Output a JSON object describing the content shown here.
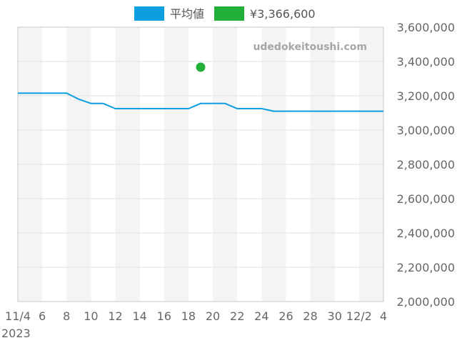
{
  "chart_data": {
    "type": "line",
    "watermark": "udedokeitoushi.com",
    "x_axis": {
      "min": "2023-11-04",
      "max": "2023-12-04",
      "tick_labels": [
        "11/4",
        "6",
        "8",
        "10",
        "12",
        "14",
        "16",
        "18",
        "20",
        "22",
        "24",
        "26",
        "28",
        "30",
        "12/2",
        "4"
      ],
      "tick_dates": [
        "2023-11-04",
        "2023-11-06",
        "2023-11-08",
        "2023-11-10",
        "2023-11-12",
        "2023-11-14",
        "2023-11-16",
        "2023-11-18",
        "2023-11-20",
        "2023-11-22",
        "2023-11-24",
        "2023-11-26",
        "2023-11-28",
        "2023-11-30",
        "2023-12-02",
        "2023-12-04"
      ],
      "year_label": "2023",
      "alternating_bands": true
    },
    "y_axis": {
      "position": "right",
      "min": 2000000,
      "max": 3600000,
      "ticks": [
        2000000,
        2200000,
        2400000,
        2600000,
        2800000,
        3000000,
        3200000,
        3400000,
        3600000
      ],
      "tick_labels": [
        "2,000,000",
        "2,200,000",
        "2,400,000",
        "2,600,000",
        "2,800,000",
        "3,000,000",
        "3,200,000",
        "3,400,000",
        "3,600,000"
      ],
      "grid": true
    },
    "legend": {
      "placement": "top-center"
    },
    "series": [
      {
        "name": "平均値",
        "kind": "line",
        "color": "#0b9ee1",
        "points": [
          {
            "x": "2023-11-04",
            "y": 3215000
          },
          {
            "x": "2023-11-05",
            "y": 3215000
          },
          {
            "x": "2023-11-06",
            "y": 3215000
          },
          {
            "x": "2023-11-07",
            "y": 3215000
          },
          {
            "x": "2023-11-08",
            "y": 3215000
          },
          {
            "x": "2023-11-09",
            "y": 3180000
          },
          {
            "x": "2023-11-10",
            "y": 3155000
          },
          {
            "x": "2023-11-11",
            "y": 3155000
          },
          {
            "x": "2023-11-12",
            "y": 3125000
          },
          {
            "x": "2023-11-13",
            "y": 3125000
          },
          {
            "x": "2023-11-14",
            "y": 3125000
          },
          {
            "x": "2023-11-15",
            "y": 3125000
          },
          {
            "x": "2023-11-16",
            "y": 3125000
          },
          {
            "x": "2023-11-17",
            "y": 3125000
          },
          {
            "x": "2023-11-18",
            "y": 3125000
          },
          {
            "x": "2023-11-19",
            "y": 3155000
          },
          {
            "x": "2023-11-20",
            "y": 3155000
          },
          {
            "x": "2023-11-21",
            "y": 3155000
          },
          {
            "x": "2023-11-22",
            "y": 3125000
          },
          {
            "x": "2023-11-23",
            "y": 3125000
          },
          {
            "x": "2023-11-24",
            "y": 3125000
          },
          {
            "x": "2023-11-25",
            "y": 3110000
          },
          {
            "x": "2023-11-26",
            "y": 3110000
          },
          {
            "x": "2023-11-27",
            "y": 3110000
          },
          {
            "x": "2023-11-28",
            "y": 3110000
          },
          {
            "x": "2023-11-29",
            "y": 3110000
          },
          {
            "x": "2023-11-30",
            "y": 3110000
          },
          {
            "x": "2023-12-01",
            "y": 3110000
          },
          {
            "x": "2023-12-02",
            "y": 3110000
          },
          {
            "x": "2023-12-03",
            "y": 3110000
          },
          {
            "x": "2023-12-04",
            "y": 3110000
          }
        ]
      },
      {
        "name": "¥3,366,600",
        "kind": "point",
        "color": "#22b03a",
        "points": [
          {
            "x": "2023-11-19",
            "y": 3366600
          }
        ]
      }
    ]
  }
}
